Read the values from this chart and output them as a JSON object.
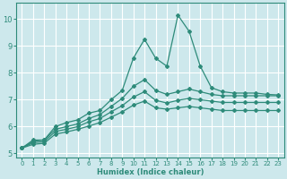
{
  "xlabel": "Humidex (Indice chaleur)",
  "ylabel": "",
  "background_color": "#cde8ec",
  "grid_color": "#ffffff",
  "line_color": "#2e8b7a",
  "xlim": [
    -0.5,
    23.5
  ],
  "ylim": [
    4.85,
    10.6
  ],
  "xticks": [
    0,
    1,
    2,
    3,
    4,
    5,
    6,
    7,
    8,
    9,
    10,
    11,
    12,
    13,
    14,
    15,
    16,
    17,
    18,
    19,
    20,
    21,
    22,
    23
  ],
  "yticks": [
    5,
    6,
    7,
    8,
    9,
    10
  ],
  "lines": [
    [
      5.2,
      5.5,
      5.5,
      6.0,
      6.15,
      6.25,
      6.5,
      6.6,
      7.0,
      7.35,
      8.55,
      9.25,
      8.55,
      8.25,
      10.15,
      9.55,
      8.25,
      7.45,
      7.3,
      7.25,
      7.25,
      7.25,
      7.2,
      7.18
    ],
    [
      5.2,
      5.45,
      5.5,
      5.9,
      6.0,
      6.1,
      6.3,
      6.45,
      6.75,
      7.05,
      7.5,
      7.75,
      7.35,
      7.2,
      7.3,
      7.4,
      7.3,
      7.2,
      7.15,
      7.15,
      7.15,
      7.15,
      7.15,
      7.15
    ],
    [
      5.2,
      5.4,
      5.44,
      5.82,
      5.9,
      6.0,
      6.18,
      6.3,
      6.55,
      6.78,
      7.1,
      7.3,
      6.98,
      6.88,
      6.98,
      7.05,
      7.0,
      6.95,
      6.9,
      6.9,
      6.9,
      6.9,
      6.9,
      6.9
    ],
    [
      5.2,
      5.34,
      5.38,
      5.72,
      5.8,
      5.9,
      6.02,
      6.15,
      6.35,
      6.55,
      6.8,
      6.95,
      6.7,
      6.65,
      6.7,
      6.75,
      6.7,
      6.65,
      6.6,
      6.6,
      6.6,
      6.6,
      6.6,
      6.6
    ]
  ],
  "marker": "D",
  "markersize": 2.0,
  "linewidth": 0.9,
  "xlabel_fontsize": 6.0,
  "tick_fontsize_x": 5.0,
  "tick_fontsize_y": 6.0
}
